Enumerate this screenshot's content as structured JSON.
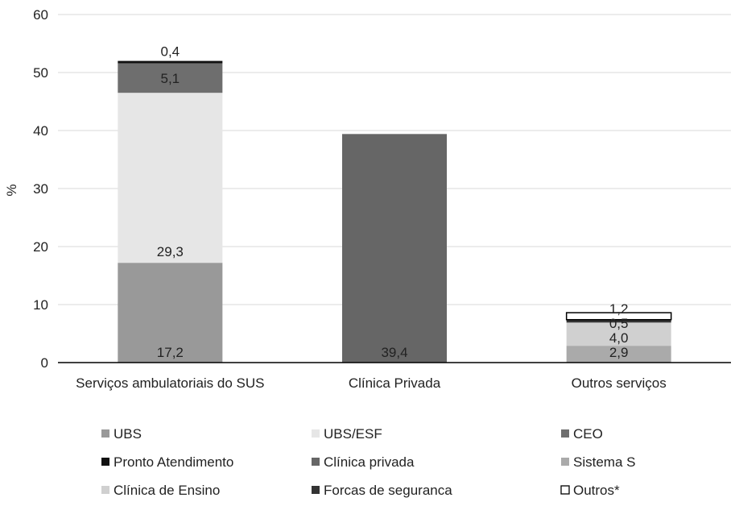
{
  "chart_data": {
    "type": "bar",
    "stacked": true,
    "ylabel": "%",
    "ylim": [
      0,
      60
    ],
    "yticks": [
      0,
      10,
      20,
      30,
      40,
      50,
      60
    ],
    "grid": true,
    "legend_position": "bottom",
    "categories": [
      "Serviços ambulatoriais do SUS",
      "Clínica Privada",
      "Outros serviços"
    ],
    "series": [
      {
        "name": "UBS",
        "color": "#999999",
        "values": [
          17.2,
          0,
          0
        ],
        "labels": [
          "17,2",
          "",
          ""
        ],
        "border": false
      },
      {
        "name": "UBS/ESF",
        "color": "#e6e6e6",
        "values": [
          29.3,
          0,
          0
        ],
        "labels": [
          "29,3",
          "",
          ""
        ],
        "border": false
      },
      {
        "name": "CEO",
        "color": "#6e6e6e",
        "values": [
          5.1,
          0,
          0
        ],
        "labels": [
          "5,1",
          "",
          ""
        ],
        "border": false
      },
      {
        "name": "Pronto Atendimento",
        "color": "#111111",
        "values": [
          0.4,
          0,
          0
        ],
        "labels": [
          "0,4",
          "",
          ""
        ],
        "border": false
      },
      {
        "name": "Clínica privada",
        "color": "#666666",
        "values": [
          0,
          39.4,
          0
        ],
        "labels": [
          "",
          "39,4",
          ""
        ],
        "border": false
      },
      {
        "name": "Sistema S",
        "color": "#aaaaaa",
        "values": [
          0,
          0,
          2.9
        ],
        "labels": [
          "",
          "",
          "2,9"
        ],
        "border": false
      },
      {
        "name": "Clínica de Ensino",
        "color": "#d0d0d0",
        "values": [
          0,
          0,
          4.0
        ],
        "labels": [
          "",
          "",
          "4,0"
        ],
        "border": false
      },
      {
        "name": "Forcas de seguranca",
        "color": "#333333",
        "values": [
          0,
          0,
          0.5
        ],
        "labels": [
          "",
          "",
          "0,5"
        ],
        "border": false
      },
      {
        "name": "Outros*",
        "color": "#ffffff",
        "values": [
          0,
          0,
          1.2
        ],
        "labels": [
          "",
          "",
          "1,2"
        ],
        "border": true
      }
    ]
  }
}
